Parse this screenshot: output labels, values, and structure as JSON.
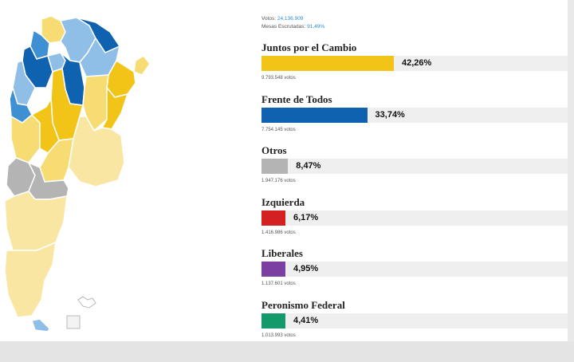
{
  "summary": {
    "votes_label": "Votos:",
    "votes_value": "24.136.909",
    "tables_label": "Mesas Escrutadas:",
    "tables_value": "91,49%"
  },
  "chart_data": {
    "type": "bar",
    "orientation": "horizontal",
    "xlim": [
      0,
      100
    ],
    "categories": [
      "Juntos por el Cambio",
      "Frente de Todos",
      "Otros",
      "Izquierda",
      "Liberales",
      "Peronismo Federal"
    ],
    "values": [
      42.26,
      33.74,
      8.47,
      6.17,
      4.95,
      4.41
    ],
    "value_labels": [
      "42,26%",
      "33,74%",
      "8,47%",
      "6,17%",
      "4,95%",
      "4,41%"
    ],
    "votes_labels": [
      "9.793.548 votos",
      "7.754.145 votos",
      "1.947.176 votos",
      "1.416.986 votos",
      "1.137.601 votos",
      "1.013.993 votos"
    ],
    "colors": [
      "#f2c418",
      "#0f62b0",
      "#b4b4b4",
      "#d42020",
      "#7a3fa0",
      "#14996a"
    ]
  },
  "map": {
    "colors": {
      "jxc": "#f2c418",
      "jxc_light": "#f7dc73",
      "jxc_pale": "#f9e6a3",
      "fdt": "#0f62b0",
      "fdt_mid": "#3f8fd3",
      "fdt_light": "#8fbfe6",
      "otros": "#b4b4b4",
      "border": "#ffffff"
    }
  }
}
